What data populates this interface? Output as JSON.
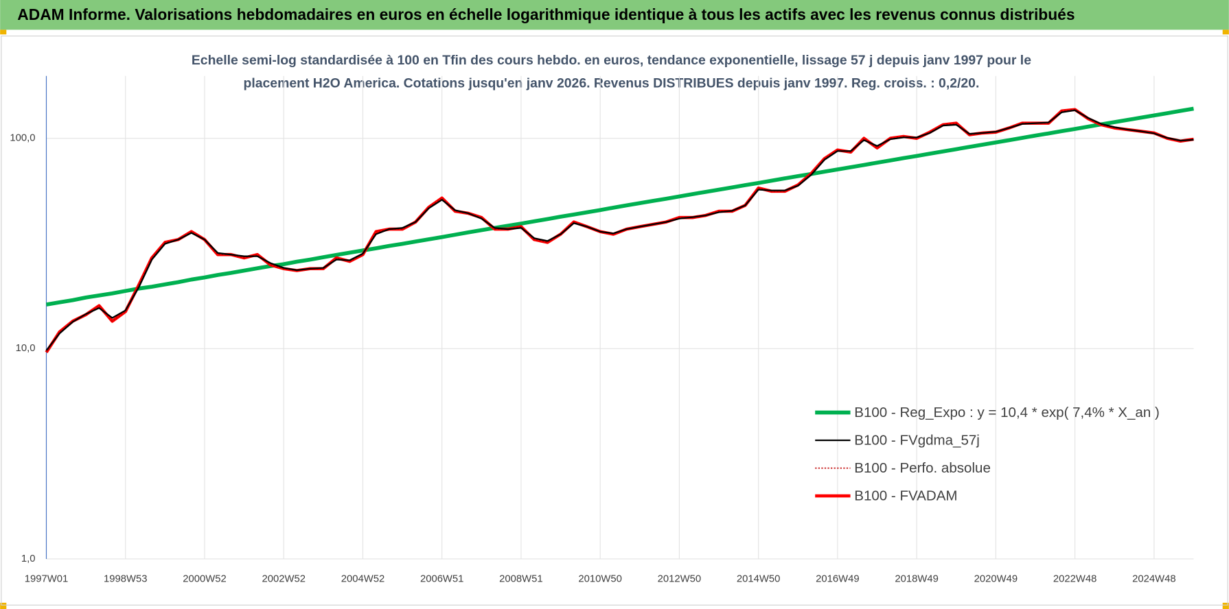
{
  "chart_data": {
    "type": "line",
    "title": "ADAM Informe. Valorisations hebdomadaires en euros en échelle logarithmique identique à tous les actifs avec les revenus connus distribués",
    "subtitle": [
      "Echelle semi-log standardisée à 100 en Tfin des cours hebdo. en euros, tendance exponentielle, lissage 57 j depuis janv 1997 pour le",
      "placement H2O America. Cotations jusqu'en janv 2026. Revenus DISTRIBUES depuis janv 1997. Reg. croiss. : 0,2/20."
    ],
    "log_scale": true,
    "grid": true,
    "legend": "bottom-right",
    "ylim": [
      1,
      198
    ],
    "yticks": [
      {
        "value": 1,
        "label": "1,0"
      },
      {
        "value": 10,
        "label": "10,0"
      },
      {
        "value": 100,
        "label": "100,0"
      }
    ],
    "categories": [
      "1997W01",
      null,
      null,
      null,
      null,
      null,
      "1998W53",
      null,
      null,
      null,
      null,
      null,
      "2000W52",
      null,
      null,
      null,
      null,
      null,
      "2002W52",
      null,
      null,
      null,
      null,
      null,
      "2004W52",
      null,
      null,
      null,
      null,
      null,
      "2006W51",
      null,
      null,
      null,
      null,
      null,
      "2008W51",
      null,
      null,
      null,
      null,
      null,
      "2010W50",
      null,
      null,
      null,
      null,
      null,
      "2012W50",
      null,
      null,
      null,
      null,
      null,
      "2014W50",
      null,
      null,
      null,
      null,
      null,
      "2016W49",
      null,
      null,
      null,
      null,
      null,
      "2018W49",
      null,
      null,
      null,
      null,
      null,
      "2020W49",
      null,
      null,
      null,
      null,
      null,
      "2022W48",
      null,
      null,
      null,
      null,
      null,
      "2024W48",
      null,
      null,
      null
    ],
    "series": [
      {
        "name": "B100 - Reg_Expo : y = 10,4 * exp( 7,4% *  X_an )",
        "color": "#00b050",
        "width": 5,
        "dash": "solid",
        "values": [
          16.2,
          16.6,
          17.0,
          17.5,
          17.9,
          18.3,
          18.8,
          19.3,
          19.7,
          20.2,
          20.7,
          21.3,
          21.8,
          22.4,
          22.9,
          23.5,
          24.1,
          24.7,
          25.2,
          25.9,
          26.5,
          27.2,
          27.9,
          28.6,
          29.3,
          30.0,
          30.8,
          31.5,
          32.3,
          33.1,
          33.9,
          34.8,
          35.7,
          36.6,
          37.5,
          38.4,
          39.3,
          40.3,
          41.3,
          42.4,
          43.4,
          44.5,
          45.6,
          46.8,
          48.0,
          49.2,
          50.4,
          51.6,
          52.9,
          54.3,
          55.6,
          57.0,
          58.4,
          59.9,
          61.3,
          62.9,
          64.5,
          66.1,
          67.7,
          69.4,
          71.1,
          72.9,
          74.7,
          76.6,
          78.5,
          80.5,
          82.4,
          84.5,
          86.6,
          88.8,
          91.0,
          93.3,
          95.6,
          98.0,
          100.5,
          103.0,
          105.5,
          108.2,
          110.8,
          113.6,
          116.5,
          119.4,
          122.3,
          125.4,
          128.5,
          131.7,
          135.0,
          138.4
        ]
      },
      {
        "name": "B100 - FVgdma_57j",
        "color": "#000000",
        "width": 2,
        "dash": "solid",
        "values": [
          9.8,
          11.8,
          13.4,
          14.6,
          15.6,
          14,
          15.2,
          19.5,
          26.5,
          31.5,
          33,
          35.5,
          33,
          28.5,
          28,
          27.5,
          27.5,
          25.5,
          24.2,
          23.6,
          24,
          24.2,
          26.5,
          26.3,
          28.3,
          35,
          37,
          37.5,
          40,
          46.5,
          51,
          45.5,
          44,
          41.5,
          37.5,
          37,
          37.5,
          33.5,
          32.5,
          35,
          39.5,
          38,
          36,
          35.3,
          37,
          38,
          39,
          40,
          41.5,
          42.2,
          43,
          44.5,
          45.2,
          48,
          57,
          56.5,
          56.5,
          59.5,
          67,
          79,
          87,
          87,
          98,
          92,
          99,
          101,
          101,
          106,
          115,
          116,
          105,
          106,
          107.5,
          112,
          117,
          118,
          119,
          133,
          136,
          125,
          117,
          113,
          110,
          108,
          105.5,
          100.5,
          97.5,
          98.5
        ]
      },
      {
        "name": "B100 - Perfo. absolue",
        "color": "#c00000",
        "width": 1.5,
        "dash": "dotted",
        "values": [
          9.6,
          12,
          13.5,
          14.5,
          16,
          13.5,
          15,
          20,
          27,
          32,
          33,
          36,
          33,
          28,
          28,
          27,
          28,
          25,
          24,
          23.5,
          24,
          24,
          27,
          26,
          28,
          36,
          37,
          37,
          40,
          47,
          52,
          45,
          44,
          42,
          37,
          37,
          38,
          33,
          32,
          35,
          40,
          38,
          36,
          35,
          37,
          38,
          39,
          40,
          42,
          42,
          43,
          45,
          45,
          48,
          58,
          56,
          56,
          60,
          68,
          80,
          88,
          86,
          100,
          90,
          100,
          102,
          100,
          107,
          116,
          118,
          104,
          106,
          107,
          112,
          118,
          118,
          118,
          135,
          137,
          124,
          116,
          112,
          110,
          108,
          106,
          100,
          97,
          99
        ]
      },
      {
        "name": "B100 - FVADAM",
        "color": "#ff0000",
        "width": 4,
        "dash": "solid",
        "values": [
          9.6,
          12,
          13.5,
          14.5,
          16,
          13.5,
          15,
          20,
          27,
          32,
          33,
          36,
          33,
          28,
          28,
          27,
          28,
          25,
          24,
          23.5,
          24,
          24,
          27,
          26,
          28,
          36,
          37,
          37,
          40,
          47,
          52,
          45,
          44,
          42,
          37,
          37,
          38,
          33,
          32,
          35,
          40,
          38,
          36,
          35,
          37,
          38,
          39,
          40,
          42,
          42,
          43,
          45,
          45,
          48,
          58,
          56,
          56,
          60,
          68,
          80,
          88,
          86,
          100,
          90,
          100,
          102,
          100,
          107,
          116,
          118,
          104,
          106,
          107,
          112,
          118,
          118,
          118,
          135,
          137,
          124,
          116,
          112,
          110,
          108,
          106,
          100,
          97,
          99
        ]
      }
    ]
  }
}
